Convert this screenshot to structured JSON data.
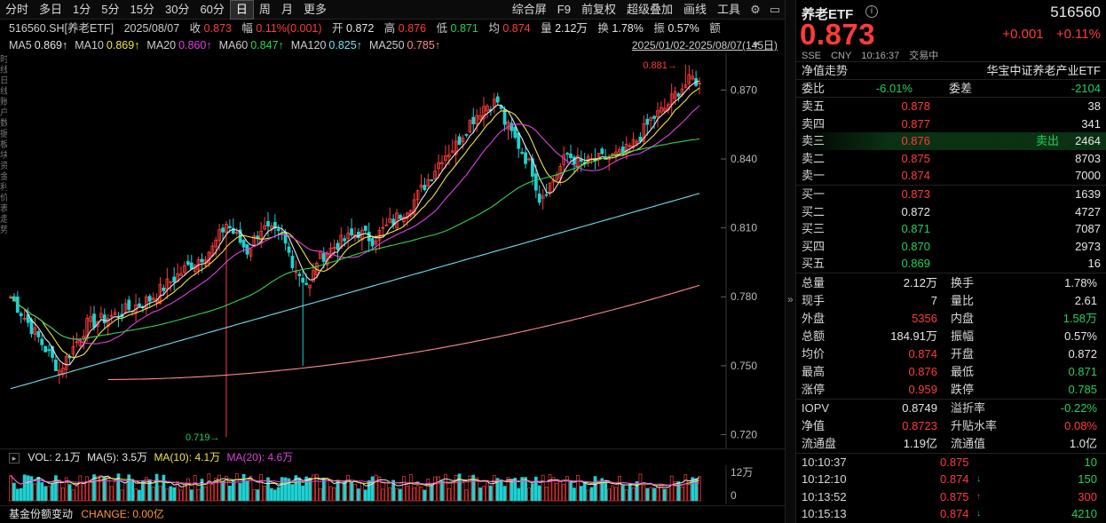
{
  "toolbar": {
    "left_items": [
      "分时",
      "多日",
      "1分",
      "5分",
      "15分",
      "30分",
      "60分",
      "日",
      "周",
      "月",
      "更多"
    ],
    "active": "日",
    "right_items": [
      "综合屏",
      "F9",
      "前复权",
      "超级叠加",
      "画线",
      "工具"
    ]
  },
  "info_line": {
    "symbol": "516560.SH[养老ETF]",
    "date": "2025/08/07",
    "close_label": "收",
    "close": "0.873",
    "amp_label": "幅",
    "amp": "0.11%(0.001)",
    "open_label": "开",
    "open": "0.872",
    "high_label": "高",
    "high": "0.876",
    "low_label": "低",
    "low": "0.871",
    "avg_label": "均",
    "avg": "0.874",
    "vol_label": "量",
    "vol": "2.12万",
    "turnover_label": "换",
    "turnover": "1.78%",
    "swing_label": "振",
    "swing": "0.57%",
    "amount_label": "额"
  },
  "ma_line": {
    "items": [
      {
        "label": "MA5",
        "value": "0.869↑",
        "color": "#e6e6e6"
      },
      {
        "label": "MA10",
        "value": "0.869↑",
        "color": "#f0e44a"
      },
      {
        "label": "MA20",
        "value": "0.860↑",
        "color": "#e040e0"
      },
      {
        "label": "MA60",
        "value": "0.847↑",
        "color": "#2fd64c"
      },
      {
        "label": "MA120",
        "value": "0.825↑",
        "color": "#6fe0f0"
      },
      {
        "label": "MA250",
        "value": "0.785↑",
        "color": "#ff8a8a"
      }
    ],
    "date_range": "2025/01/02-2025/08/07(145日)"
  },
  "left_strip": "时 线 日 线 账 户 数 据 板 块 资 金 利 价 表 走 势",
  "chart_data": {
    "type": "candlestick",
    "title": "",
    "y_ticks": [
      0.87,
      0.84,
      0.81,
      0.78,
      0.75,
      0.72
    ],
    "ylim": [
      0.714,
      0.886
    ],
    "annotations": [
      {
        "label": "0.881",
        "value": 0.881
      },
      {
        "label": "0.719",
        "value": 0.719
      }
    ],
    "trading_days": 145,
    "last_close": 0.873,
    "ma_series": [
      "MA5",
      "MA10",
      "MA20",
      "MA60",
      "MA120",
      "MA250"
    ]
  },
  "volume": {
    "label": "VOL: 2.1万",
    "ma5": "MA(5): 3.5万",
    "ma10": "MA(10): 4.1万",
    "ma20": "MA(20): 4.6万",
    "y_tick_top": "12万",
    "y_tick_bottom": "0"
  },
  "fund_change": {
    "label": "基金份额变动",
    "change": "CHANGE: 0.00亿"
  },
  "panel": {
    "name": "养老ETF",
    "code": "516560",
    "price": "0.873",
    "change": "+0.001",
    "change_pct": "+0.11%",
    "market": "SSE",
    "currency": "CNY",
    "time": "10:16:37",
    "status": "交易中",
    "nav_trend": "净值走势",
    "index_name": "华宝中证养老产业ETF",
    "weibi_label": "委比",
    "weibi": "-6.01%",
    "weicha_label": "委差",
    "weicha": "-2104",
    "asks": [
      {
        "label": "卖五",
        "price": "0.878",
        "qty": "38",
        "note": ""
      },
      {
        "label": "卖四",
        "price": "0.877",
        "qty": "341",
        "note": ""
      },
      {
        "label": "卖三",
        "price": "0.876",
        "qty": "2464",
        "note": "卖出"
      },
      {
        "label": "卖二",
        "price": "0.875",
        "qty": "8703",
        "note": ""
      },
      {
        "label": "卖一",
        "price": "0.874",
        "qty": "7000",
        "note": ""
      }
    ],
    "bids": [
      {
        "label": "买一",
        "price": "0.873",
        "qty": "1639",
        "color": "#ff3b3b"
      },
      {
        "label": "买二",
        "price": "0.872",
        "qty": "4727",
        "color": "#e6e6e6"
      },
      {
        "label": "买三",
        "price": "0.871",
        "qty": "7087",
        "color": "#1fd15a"
      },
      {
        "label": "买四",
        "price": "0.870",
        "qty": "2973",
        "color": "#1fd15a"
      },
      {
        "label": "买五",
        "price": "0.869",
        "qty": "16",
        "color": "#1fd15a"
      }
    ],
    "stats": [
      {
        "k1": "总量",
        "v1": "2.12万",
        "c1": "#e6e6e6",
        "k2": "换手",
        "v2": "1.78%",
        "c2": "#e6e6e6"
      },
      {
        "k1": "现手",
        "v1": "7",
        "c1": "#e6e6e6",
        "k2": "量比",
        "v2": "2.61",
        "c2": "#e6e6e6"
      },
      {
        "k1": "外盘",
        "v1": "5356",
        "c1": "#ff3b3b",
        "k2": "内盘",
        "v2": "1.58万",
        "c2": "#1fd15a"
      },
      {
        "k1": "总额",
        "v1": "184.91万",
        "c1": "#e6e6e6",
        "k2": "振幅",
        "v2": "0.57%",
        "c2": "#e6e6e6"
      },
      {
        "k1": "均价",
        "v1": "0.874",
        "c1": "#ff3b3b",
        "k2": "开盘",
        "v2": "0.872",
        "c2": "#e6e6e6"
      },
      {
        "k1": "最高",
        "v1": "0.876",
        "c1": "#ff3b3b",
        "k2": "最低",
        "v2": "0.871",
        "c2": "#1fd15a"
      },
      {
        "k1": "涨停",
        "v1": "0.959",
        "c1": "#ff3b3b",
        "k2": "跌停",
        "v2": "0.785",
        "c2": "#1fd15a"
      }
    ],
    "stats2": [
      {
        "k1": "IOPV",
        "v1": "0.8749",
        "c1": "#e6e6e6",
        "k2": "溢折率",
        "v2": "-0.22%",
        "c2": "#1fd15a"
      },
      {
        "k1": "净值",
        "v1": "0.8723",
        "c1": "#ff3b3b",
        "k2": "升贴水率",
        "v2": "0.08%",
        "c2": "#ff3b3b"
      },
      {
        "k1": "流通盘",
        "v1": "1.19亿",
        "c1": "#e6e6e6",
        "k2": "流通值",
        "v2": "1.0亿",
        "c2": "#e6e6e6"
      }
    ],
    "ticks": [
      {
        "time": "10:10:37",
        "price": "0.875",
        "arrow": "",
        "qty": "10",
        "qc": "#1fd15a"
      },
      {
        "time": "10:12:10",
        "price": "0.874",
        "arrow": "↓",
        "qty": "150",
        "qc": "#1fd15a"
      },
      {
        "time": "10:13:52",
        "price": "0.875",
        "arrow": "↑",
        "qty": "300",
        "qc": "#ff3b3b"
      },
      {
        "time": "10:15:13",
        "price": "0.874",
        "arrow": "↓",
        "qty": "4210",
        "qc": "#1fd15a"
      }
    ]
  }
}
